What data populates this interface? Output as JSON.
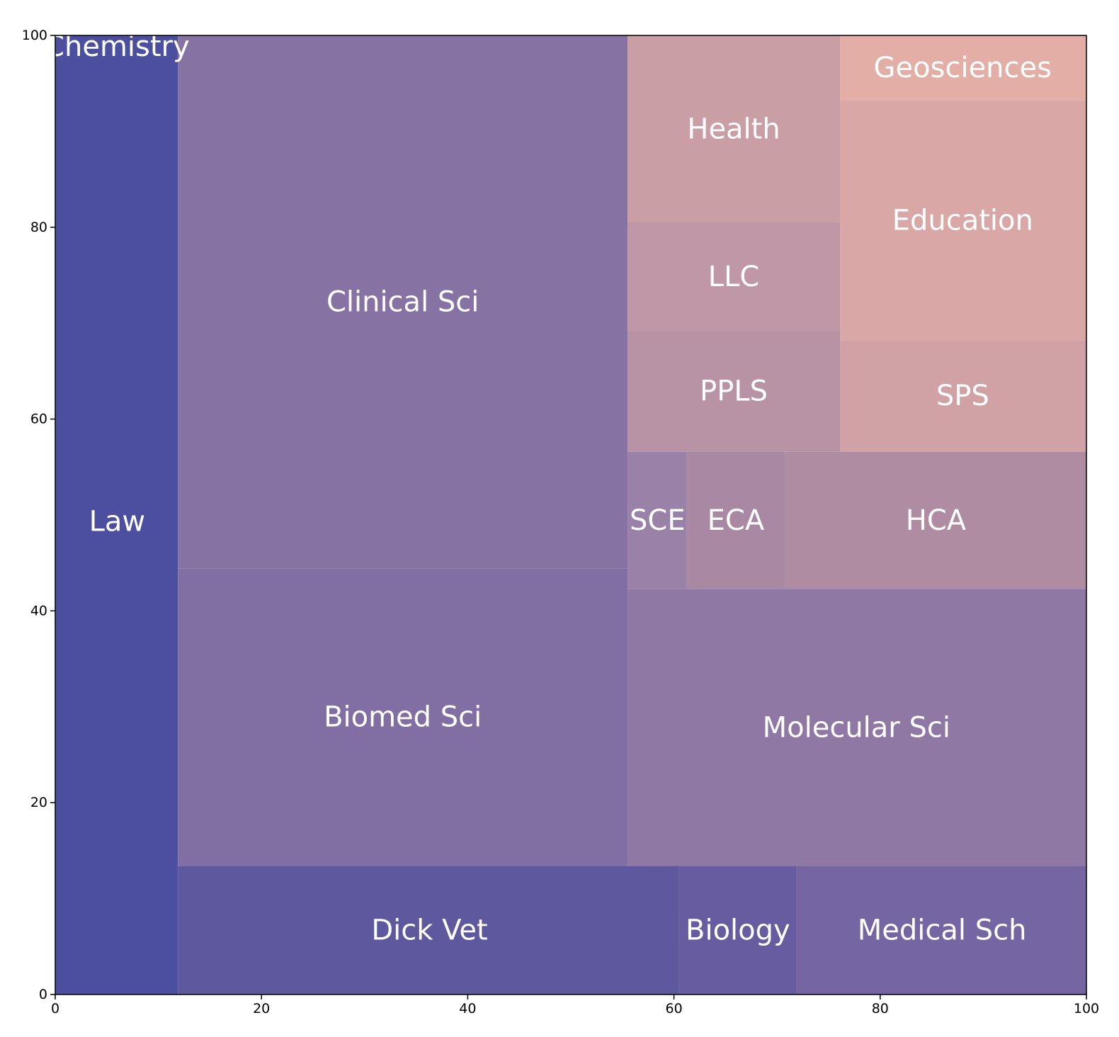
{
  "chart_data": {
    "type": "treemap",
    "title": "",
    "xlabel": "",
    "ylabel": "",
    "xlim": [
      0,
      100
    ],
    "ylim": [
      0,
      100
    ],
    "xticks": [
      "0",
      "20",
      "40",
      "60",
      "80",
      "100"
    ],
    "yticks": [
      "0",
      "20",
      "40",
      "60",
      "80",
      "100"
    ],
    "grid": false,
    "legend": "none",
    "cells": [
      {
        "label": "Chemistry",
        "x0": 0,
        "x1": 11.9,
        "y0": 0,
        "y1": 100,
        "color": "#4c4e9f",
        "label_x": 6.0,
        "label_y": 98.8
      },
      {
        "label": "Law",
        "x0": 0,
        "x1": 11.9,
        "y0": 0,
        "y1": 100,
        "color": "#4c4e9f",
        "label_x": 6.0,
        "label_y": 49.3,
        "hidden_rect": true
      },
      {
        "label": "Dick Vet",
        "x0": 11.9,
        "x1": 60.5,
        "y0": 0,
        "y1": 13.4,
        "color": "#5e589f",
        "label_x": 36.3,
        "label_y": 6.7
      },
      {
        "label": "Biology",
        "x0": 60.5,
        "x1": 71.9,
        "y0": 0,
        "y1": 13.4,
        "color": "#685ca0",
        "label_x": 66.2,
        "label_y": 6.7
      },
      {
        "label": "Medical Sch",
        "x0": 71.9,
        "x1": 100,
        "y0": 0,
        "y1": 13.4,
        "color": "#7565a3",
        "label_x": 86.0,
        "label_y": 6.7
      },
      {
        "label": "Biomed Sci",
        "x0": 11.9,
        "x1": 55.5,
        "y0": 13.4,
        "y1": 44.4,
        "color": "#816fa3",
        "label_x": 33.7,
        "label_y": 28.9
      },
      {
        "label": "Clinical Sci",
        "x0": 11.9,
        "x1": 55.5,
        "y0": 44.4,
        "y1": 100,
        "color": "#8673a3",
        "label_x": 33.7,
        "label_y": 72.2
      },
      {
        "label": "Molecular Sci",
        "x0": 55.5,
        "x1": 100,
        "y0": 13.4,
        "y1": 42.3,
        "color": "#8f78a4",
        "label_x": 77.7,
        "label_y": 27.8
      },
      {
        "label": "SCE",
        "x0": 55.5,
        "x1": 61.2,
        "y0": 42.3,
        "y1": 56.6,
        "color": "#9a81a7",
        "label_x": 58.4,
        "label_y": 49.4
      },
      {
        "label": "ECA",
        "x0": 61.2,
        "x1": 70.8,
        "y0": 42.3,
        "y1": 56.6,
        "color": "#a988a3",
        "label_x": 66.0,
        "label_y": 49.4
      },
      {
        "label": "HCA",
        "x0": 70.8,
        "x1": 100,
        "y0": 42.3,
        "y1": 56.6,
        "color": "#b08ca2",
        "label_x": 85.4,
        "label_y": 49.4
      },
      {
        "label": "PPLS",
        "x0": 55.5,
        "x1": 76.1,
        "y0": 56.6,
        "y1": 69.2,
        "color": "#b893a5",
        "label_x": 65.8,
        "label_y": 62.9
      },
      {
        "label": "LLC",
        "x0": 55.5,
        "x1": 76.1,
        "y0": 69.2,
        "y1": 80.5,
        "color": "#c097a6",
        "label_x": 65.8,
        "label_y": 74.8
      },
      {
        "label": "Health",
        "x0": 55.5,
        "x1": 76.1,
        "y0": 80.5,
        "y1": 100,
        "color": "#c99ea5",
        "label_x": 65.8,
        "label_y": 90.2
      },
      {
        "label": "SPS",
        "x0": 76.1,
        "x1": 100,
        "y0": 56.6,
        "y1": 68.2,
        "color": "#d1a2a5",
        "label_x": 88.0,
        "label_y": 62.4
      },
      {
        "label": "Education",
        "x0": 76.1,
        "x1": 100,
        "y0": 68.2,
        "y1": 93.2,
        "color": "#d9a7a6",
        "label_x": 88.0,
        "label_y": 80.7
      },
      {
        "label": "Geosciences",
        "x0": 76.1,
        "x1": 100,
        "y0": 93.2,
        "y1": 100,
        "color": "#e3aea5",
        "label_x": 88.0,
        "label_y": 96.6
      }
    ]
  }
}
